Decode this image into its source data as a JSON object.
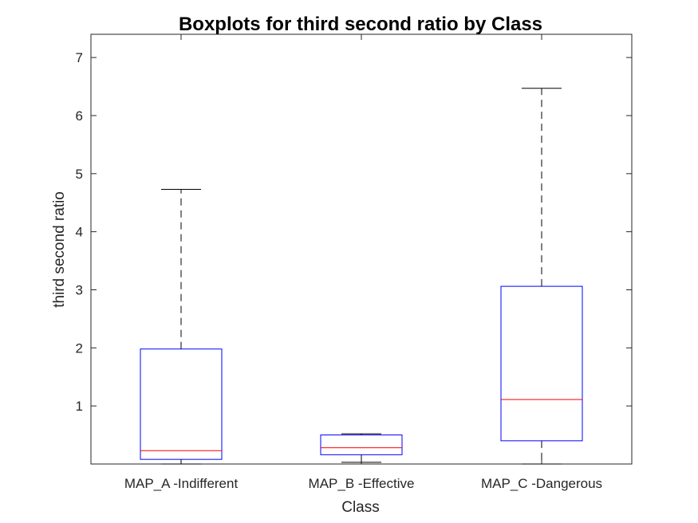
{
  "chart_data": {
    "type": "boxplot",
    "title": "Boxplots for third second ratio by Class",
    "xlabel": "Class",
    "ylabel": "third second ratio",
    "ylim": [
      0,
      7.4
    ],
    "yticks": [
      1,
      2,
      3,
      4,
      5,
      6,
      7
    ],
    "grid": false,
    "categories": [
      "MAP_A -Indifferent",
      "MAP_B -Effective",
      "MAP_C -Dangerous"
    ],
    "boxes": [
      {
        "category": "MAP_A -Indifferent",
        "whisker_low": 0.0,
        "q1": 0.08,
        "median": 0.23,
        "q3": 1.98,
        "whisker_high": 4.73
      },
      {
        "category": "MAP_B -Effective",
        "whisker_low": 0.03,
        "q1": 0.16,
        "median": 0.28,
        "q3": 0.5,
        "whisker_high": 0.52
      },
      {
        "category": "MAP_C -Dangerous",
        "whisker_low": 0.0,
        "q1": 0.4,
        "median": 1.11,
        "q3": 3.06,
        "whisker_high": 6.47
      }
    ],
    "colors": {
      "box": "#0000ff",
      "median": "#ff0000",
      "whisker": "#000000",
      "axis": "#262626"
    }
  }
}
